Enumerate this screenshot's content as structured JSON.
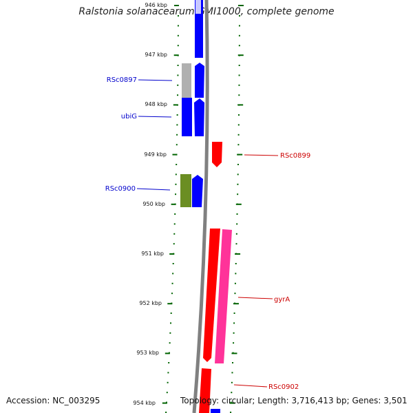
{
  "title": "Ralstonia solanacearum GMI1000, complete genome",
  "footer": {
    "accession": "Accession: NC_003295",
    "topology": "Topology: circular; Length: 3,716,413 bp; Genes: 3,501"
  },
  "ticks": [
    "946 kbp",
    "947 kbp",
    "948 kbp",
    "949 kbp",
    "950 kbp",
    "951 kbp",
    "952 kbp",
    "953 kbp",
    "954 kbp"
  ],
  "gene_labels": [
    {
      "name": "RSc0897",
      "color": "#0000cc"
    },
    {
      "name": "ubiG",
      "color": "#0000cc"
    },
    {
      "name": "RSc0899",
      "color": "#cc0000"
    },
    {
      "name": "RSc0900",
      "color": "#0000cc"
    },
    {
      "name": "gyrA",
      "color": "#cc0000"
    },
    {
      "name": "RSc0902",
      "color": "#cc0000"
    }
  ],
  "colors": {
    "gene_forward": "#0000ff",
    "gene_reverse": "#ff0000",
    "cog_pink": "#ff3399",
    "cog_green": "#6b8e23",
    "cog_gray": "#b0b0b0",
    "backbone": "#808080",
    "tick": "#006400"
  }
}
